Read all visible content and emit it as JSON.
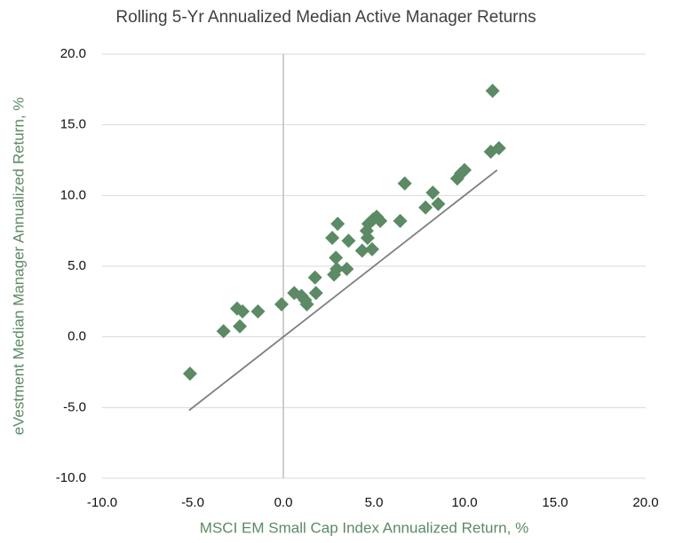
{
  "chart_data": {
    "type": "scatter",
    "title": "Rolling 5-Yr Annualized Median Active Manager Returns",
    "x_label": "MSCI EM Small Cap Index Annualized Return, %",
    "y_label": "eVestment Median Manager Annualized Return, %",
    "series": [
      {
        "color": "#5b8a64",
        "x": [
          -5.15,
          -3.3,
          -2.4,
          -2.55,
          -2.25,
          -1.4,
          -0.1,
          0.6,
          1.0,
          1.2,
          1.3,
          1.75,
          1.8,
          2.7,
          2.8,
          2.9,
          2.95,
          3.0,
          3.5,
          3.6,
          4.35,
          4.6,
          4.65,
          4.7,
          4.9,
          4.95,
          5.15,
          5.35,
          6.45,
          6.7,
          7.85,
          8.25,
          8.55,
          9.6,
          9.8,
          10.0,
          11.45,
          11.9,
          11.55
        ],
        "values": [
          -2.6,
          0.4,
          0.75,
          2.0,
          1.8,
          1.8,
          2.3,
          3.1,
          2.9,
          2.6,
          2.3,
          4.2,
          3.1,
          7.0,
          4.4,
          5.6,
          4.8,
          8.0,
          4.8,
          6.8,
          6.1,
          7.5,
          7.0,
          8.0,
          6.2,
          8.3,
          8.5,
          8.2,
          8.2,
          10.85,
          9.15,
          10.2,
          9.4,
          11.2,
          11.55,
          11.8,
          13.1,
          13.35,
          17.4
        ]
      }
    ],
    "reference_line": {
      "x": [
        -5.2,
        11.8
      ],
      "y": [
        -5.2,
        11.8
      ],
      "color": "#7f7f7f"
    },
    "xlim": [
      -10,
      20
    ],
    "xticks": [
      {
        "value": -10,
        "label": "-10.0"
      },
      {
        "value": -5,
        "label": "-5.0"
      },
      {
        "value": 0,
        "label": "0.0"
      },
      {
        "value": 5,
        "label": "5.0"
      },
      {
        "value": 10,
        "label": "10.0"
      },
      {
        "value": 15,
        "label": "15.0"
      },
      {
        "value": 20,
        "label": "20.0"
      }
    ],
    "ylim": [
      -10,
      20
    ],
    "yticks": [
      {
        "value": -10,
        "label": "-10.0"
      },
      {
        "value": -5,
        "label": "-5.0"
      },
      {
        "value": 0,
        "label": "0.0"
      },
      {
        "value": 5,
        "label": "5.0"
      },
      {
        "value": 10,
        "label": "10.0"
      },
      {
        "value": 15,
        "label": "15.0"
      },
      {
        "value": 20,
        "label": "20.0"
      }
    ],
    "grid": true
  }
}
